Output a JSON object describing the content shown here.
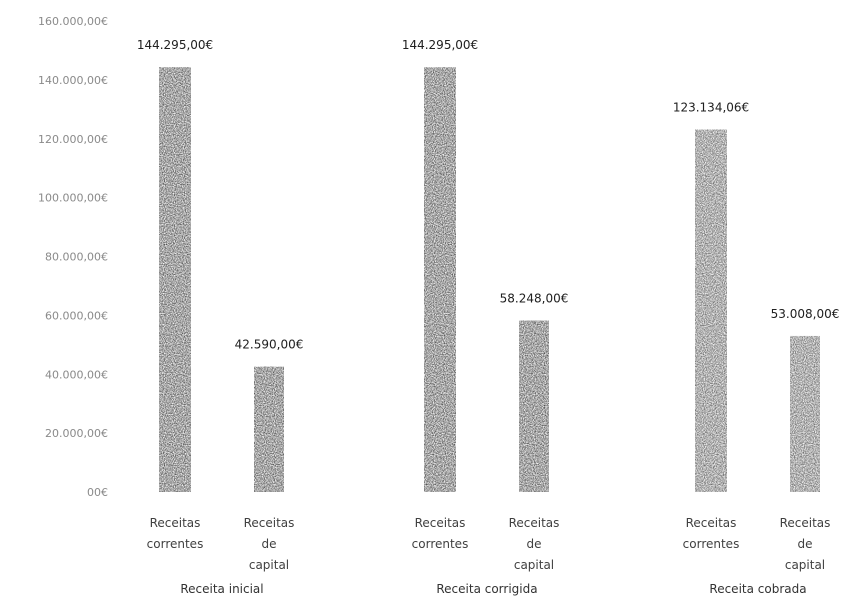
{
  "chart_data": {
    "type": "bar",
    "title": "",
    "xlabel": "",
    "ylabel": "",
    "ylim": [
      0,
      160000
    ],
    "grid": false,
    "yticks": [
      {
        "value": 0,
        "label": "00€"
      },
      {
        "value": 20000,
        "label": "20.000,00€"
      },
      {
        "value": 40000,
        "label": "40.000,00€"
      },
      {
        "value": 60000,
        "label": "60.000,00€"
      },
      {
        "value": 80000,
        "label": "80.000,00€"
      },
      {
        "value": 100000,
        "label": "100.000,00€"
      },
      {
        "value": 120000,
        "label": "120.000,00€"
      },
      {
        "value": 140000,
        "label": "140.000,00€"
      },
      {
        "value": 160000,
        "label": "160.000,00€"
      }
    ],
    "groups": [
      {
        "label": "Receita inicial",
        "bars": [
          {
            "category": "Receitas correntes",
            "value": 144295,
            "data_label": "144.295,00€"
          },
          {
            "category": "Receitas de capital",
            "value": 42590,
            "data_label": "42.590,00€"
          }
        ]
      },
      {
        "label": "Receita corrigida",
        "bars": [
          {
            "category": "Receitas correntes",
            "value": 144295,
            "data_label": "144.295,00€"
          },
          {
            "category": "Receitas de capital",
            "value": 58248,
            "data_label": "58.248,00€"
          }
        ]
      },
      {
        "label": "Receita cobrada",
        "bars": [
          {
            "category": "Receitas correntes",
            "value": 123134.06,
            "data_label": "123.134,06€"
          },
          {
            "category": "Receitas de capital",
            "value": 53008,
            "data_label": "53.008,00€"
          }
        ]
      }
    ]
  }
}
